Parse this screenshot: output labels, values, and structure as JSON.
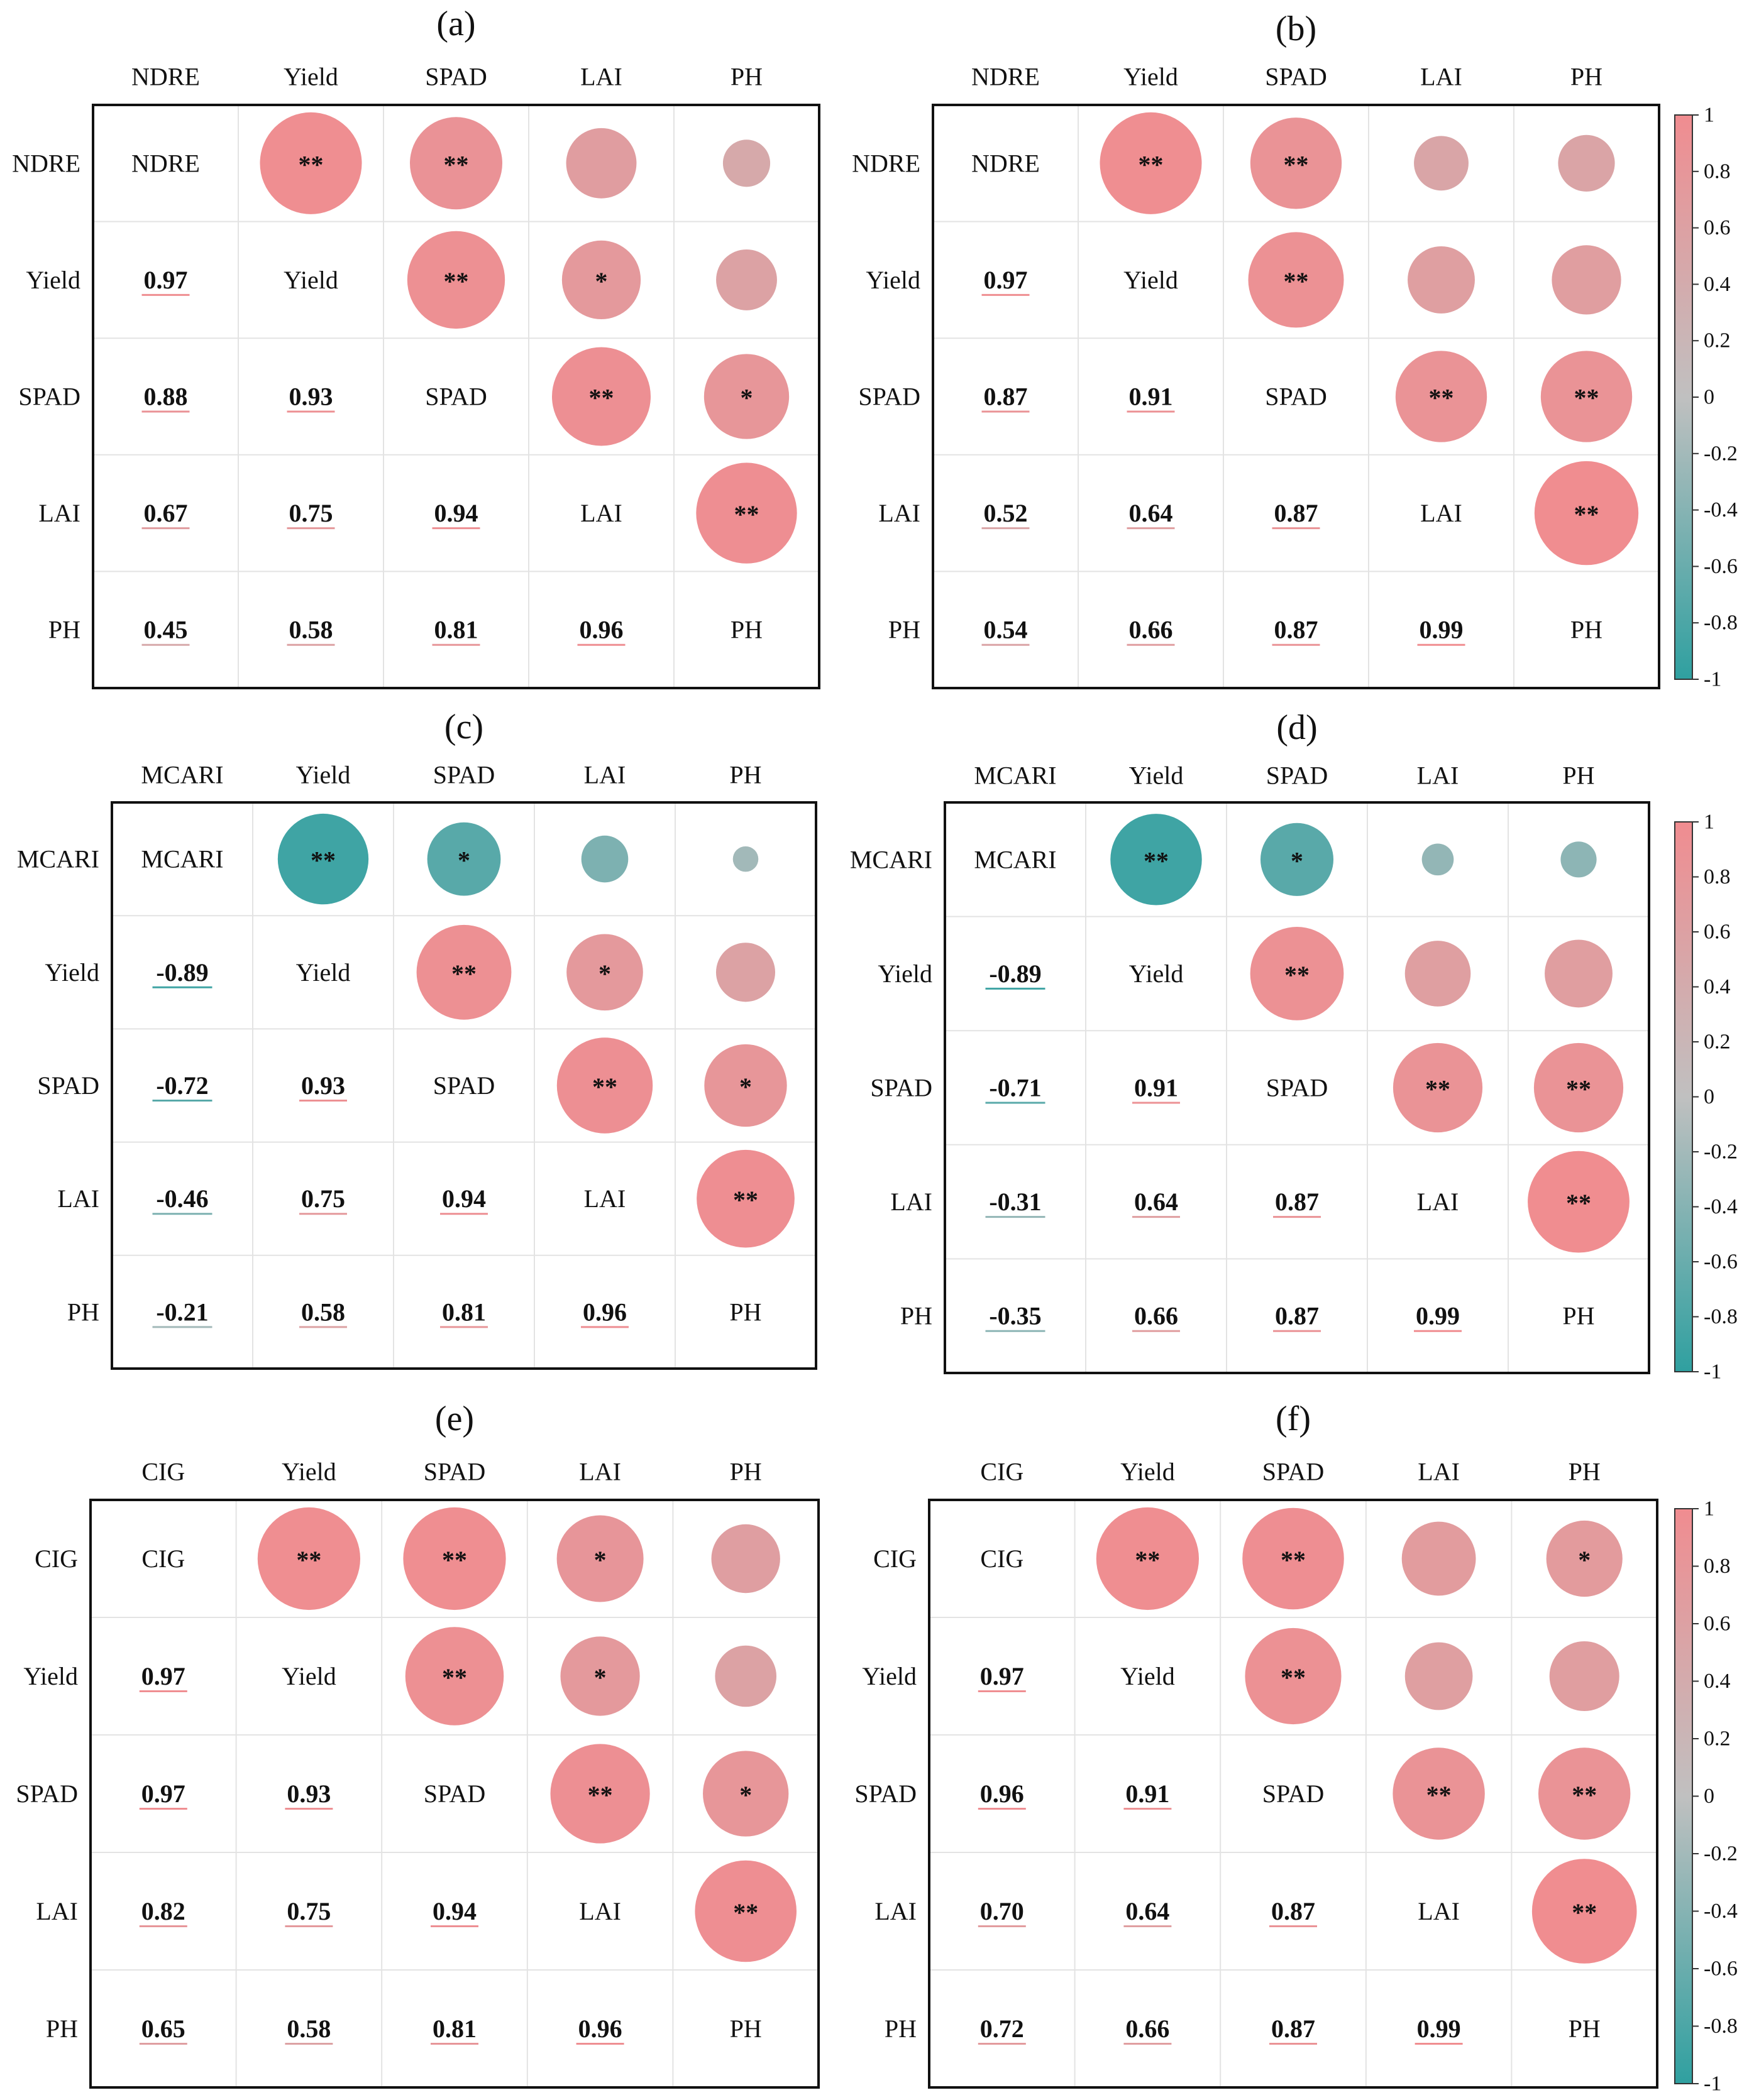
{
  "chart_data": {
    "type": "correlation-matrix",
    "colorbar": {
      "range": [
        -1,
        1
      ],
      "ticks": [
        "1",
        "0.8",
        "0.6",
        "0.4",
        "0.2",
        "0",
        "-0.2",
        "-0.4",
        "-0.6",
        "-0.8",
        "-1"
      ],
      "color_positive": "#f08c90",
      "color_zero": "#c0c0c0",
      "color_negative": "#2fa0a0"
    },
    "panels": [
      {
        "label": "(a)",
        "variables": [
          "NDRE",
          "Yield",
          "SPAD",
          "LAI",
          "PH"
        ],
        "lower_values": [
          [
            "0.97"
          ],
          [
            "0.88",
            "0.93"
          ],
          [
            "0.67",
            "0.75",
            "0.94"
          ],
          [
            "0.45",
            "0.58",
            "0.81",
            "0.96"
          ]
        ],
        "upper_significance": [
          [
            "**",
            "**",
            "",
            ""
          ],
          [
            "**",
            "*",
            ""
          ],
          [
            "**",
            "*"
          ],
          [
            "**"
          ]
        ]
      },
      {
        "label": "(b)",
        "variables": [
          "NDRE",
          "Yield",
          "SPAD",
          "LAI",
          "PH"
        ],
        "lower_values": [
          [
            "0.97"
          ],
          [
            "0.87",
            "0.91"
          ],
          [
            "0.52",
            "0.64",
            "0.87"
          ],
          [
            "0.54",
            "0.66",
            "0.87",
            "0.99"
          ]
        ],
        "upper_significance": [
          [
            "**",
            "**",
            "",
            ""
          ],
          [
            "**",
            "",
            ""
          ],
          [
            "**",
            "**"
          ],
          [
            "**"
          ]
        ]
      },
      {
        "label": "(c)",
        "variables": [
          "MCARI",
          "Yield",
          "SPAD",
          "LAI",
          "PH"
        ],
        "lower_values": [
          [
            "-0.89"
          ],
          [
            "-0.72",
            "0.93"
          ],
          [
            "-0.46",
            "0.75",
            "0.94"
          ],
          [
            "-0.21",
            "0.58",
            "0.81",
            "0.96"
          ]
        ],
        "upper_significance": [
          [
            "**",
            "*",
            "",
            ""
          ],
          [
            "**",
            "*",
            ""
          ],
          [
            "**",
            "*"
          ],
          [
            "**"
          ]
        ]
      },
      {
        "label": "(d)",
        "variables": [
          "MCARI",
          "Yield",
          "SPAD",
          "LAI",
          "PH"
        ],
        "lower_values": [
          [
            "-0.89"
          ],
          [
            "-0.71",
            "0.91"
          ],
          [
            "-0.31",
            "0.64",
            "0.87"
          ],
          [
            "-0.35",
            "0.66",
            "0.87",
            "0.99"
          ]
        ],
        "upper_significance": [
          [
            "**",
            "*",
            "",
            ""
          ],
          [
            "**",
            "",
            ""
          ],
          [
            "**",
            "**"
          ],
          [
            "**"
          ]
        ]
      },
      {
        "label": "(e)",
        "variables": [
          "CIG",
          "Yield",
          "SPAD",
          "LAI",
          "PH"
        ],
        "lower_values": [
          [
            "0.97"
          ],
          [
            "0.97",
            "0.93"
          ],
          [
            "0.82",
            "0.75",
            "0.94"
          ],
          [
            "0.65",
            "0.58",
            "0.81",
            "0.96"
          ]
        ],
        "upper_significance": [
          [
            "**",
            "**",
            "*",
            ""
          ],
          [
            "**",
            "*",
            ""
          ],
          [
            "**",
            "*"
          ],
          [
            "**"
          ]
        ]
      },
      {
        "label": "(f)",
        "variables": [
          "CIG",
          "Yield",
          "SPAD",
          "LAI",
          "PH"
        ],
        "lower_values": [
          [
            "0.97"
          ],
          [
            "0.96",
            "0.91"
          ],
          [
            "0.70",
            "0.64",
            "0.87"
          ],
          [
            "0.72",
            "0.66",
            "0.87",
            "0.99"
          ]
        ],
        "upper_significance": [
          [
            "**",
            "**",
            "",
            "*"
          ],
          [
            "**",
            "",
            ""
          ],
          [
            "**",
            "**"
          ],
          [
            "**"
          ]
        ]
      }
    ]
  }
}
